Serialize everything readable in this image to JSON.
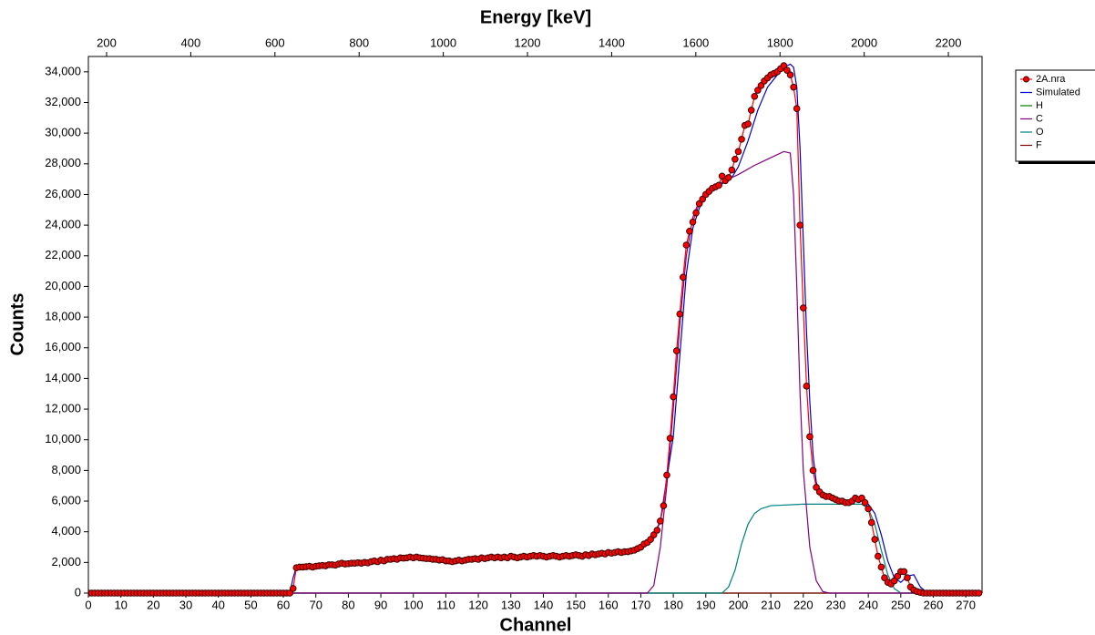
{
  "chart_data": {
    "type": "line",
    "title": "Energy [keV]",
    "x_label": "Channel",
    "y_label": "Counts",
    "xlim": [
      0,
      275
    ],
    "xticks": [
      0,
      10,
      20,
      30,
      40,
      50,
      60,
      70,
      80,
      90,
      100,
      110,
      120,
      130,
      140,
      150,
      160,
      170,
      180,
      190,
      200,
      210,
      220,
      230,
      240,
      250,
      260,
      270
    ],
    "x2lim": [
      156.7,
      2280
    ],
    "x2ticks": [
      200,
      400,
      600,
      800,
      1000,
      1200,
      1400,
      1600,
      1800,
      2000,
      2200
    ],
    "ylim": [
      0,
      35000
    ],
    "yticks": [
      0,
      {
        "value": 2000,
        "label": "2,000"
      },
      {
        "value": 4000,
        "label": "4,000"
      },
      {
        "value": 6000,
        "label": "6,000"
      },
      {
        "value": 8000,
        "label": "8,000"
      },
      {
        "value": 10000,
        "label": "10,000"
      },
      {
        "value": 12000,
        "label": "12,000"
      },
      {
        "value": 14000,
        "label": "14,000"
      },
      {
        "value": 16000,
        "label": "16,000"
      },
      {
        "value": 18000,
        "label": "18,000"
      },
      {
        "value": 20000,
        "label": "20,000"
      },
      {
        "value": 22000,
        "label": "22,000"
      },
      {
        "value": 24000,
        "label": "24,000"
      },
      {
        "value": 26000,
        "label": "26,000"
      },
      {
        "value": 28000,
        "label": "28,000"
      },
      {
        "value": 30000,
        "label": "30,000"
      },
      {
        "value": 32000,
        "label": "32,000"
      },
      {
        "value": 34000,
        "label": "34,000"
      }
    ],
    "legend": "upper right outside",
    "series": [
      {
        "name": "2A.nra",
        "color": "#ff0000",
        "markers": true,
        "x": [
          0,
          1,
          2,
          3,
          4,
          5,
          6,
          7,
          8,
          9,
          10,
          11,
          12,
          13,
          14,
          15,
          16,
          17,
          18,
          19,
          20,
          21,
          22,
          23,
          24,
          25,
          26,
          27,
          28,
          29,
          30,
          31,
          32,
          33,
          34,
          35,
          36,
          37,
          38,
          39,
          40,
          41,
          42,
          43,
          44,
          45,
          46,
          47,
          48,
          49,
          50,
          51,
          52,
          53,
          54,
          55,
          56,
          57,
          58,
          59,
          60,
          61,
          62,
          63,
          64,
          65,
          66,
          67,
          68,
          69,
          70,
          71,
          72,
          73,
          74,
          75,
          76,
          77,
          78,
          79,
          80,
          81,
          82,
          83,
          84,
          85,
          86,
          87,
          88,
          89,
          90,
          91,
          92,
          93,
          94,
          95,
          96,
          97,
          98,
          99,
          100,
          101,
          102,
          103,
          104,
          105,
          106,
          107,
          108,
          109,
          110,
          111,
          112,
          113,
          114,
          115,
          116,
          117,
          118,
          119,
          120,
          121,
          122,
          123,
          124,
          125,
          126,
          127,
          128,
          129,
          130,
          131,
          132,
          133,
          134,
          135,
          136,
          137,
          138,
          139,
          140,
          141,
          142,
          143,
          144,
          145,
          146,
          147,
          148,
          149,
          150,
          151,
          152,
          153,
          154,
          155,
          156,
          157,
          158,
          159,
          160,
          161,
          162,
          163,
          164,
          165,
          166,
          167,
          168,
          169,
          170,
          171,
          172,
          173,
          174,
          175,
          176,
          177,
          178,
          179,
          180,
          181,
          182,
          183,
          184,
          185,
          186,
          187,
          188,
          189,
          190,
          191,
          192,
          193,
          194,
          195,
          196,
          197,
          198,
          199,
          200,
          201,
          202,
          203,
          204,
          205,
          206,
          207,
          208,
          209,
          210,
          211,
          212,
          213,
          214,
          215,
          216,
          217,
          218,
          219,
          220,
          221,
          222,
          223,
          224,
          225,
          226,
          227,
          228,
          229,
          230,
          231,
          232,
          233,
          234,
          235,
          236,
          237,
          238,
          239,
          240,
          241,
          242,
          243,
          244,
          245,
          246,
          247,
          248,
          249,
          250,
          251,
          252,
          253,
          254,
          255,
          256,
          257,
          258,
          259,
          260,
          261,
          262,
          263,
          264,
          265,
          266,
          267,
          268,
          269,
          270,
          271,
          272,
          273,
          274
        ],
        "values": [
          0,
          0,
          0,
          0,
          0,
          0,
          0,
          0,
          0,
          0,
          0,
          0,
          0,
          0,
          0,
          0,
          0,
          0,
          0,
          0,
          0,
          0,
          0,
          0,
          0,
          0,
          0,
          0,
          0,
          0,
          0,
          0,
          0,
          0,
          0,
          0,
          0,
          0,
          0,
          0,
          0,
          0,
          0,
          0,
          0,
          0,
          0,
          0,
          0,
          0,
          0,
          0,
          0,
          0,
          0,
          0,
          0,
          0,
          0,
          0,
          0,
          0,
          0,
          300,
          1650,
          1700,
          1700,
          1720,
          1750,
          1700,
          1750,
          1780,
          1800,
          1780,
          1850,
          1850,
          1820,
          1900,
          1950,
          1900,
          1920,
          1950,
          1950,
          1980,
          1950,
          2000,
          1970,
          2050,
          2100,
          2050,
          2150,
          2100,
          2200,
          2200,
          2250,
          2200,
          2300,
          2280,
          2300,
          2350,
          2300,
          2350,
          2300,
          2280,
          2250,
          2250,
          2200,
          2200,
          2150,
          2180,
          2100,
          2100,
          2050,
          2100,
          2150,
          2100,
          2150,
          2200,
          2200,
          2250,
          2200,
          2300,
          2250,
          2300,
          2350,
          2300,
          2350,
          2300,
          2350,
          2300,
          2400,
          2350,
          2300,
          2350,
          2400,
          2350,
          2400,
          2450,
          2400,
          2450,
          2400,
          2350,
          2400,
          2450,
          2400,
          2350,
          2400,
          2450,
          2400,
          2450,
          2500,
          2450,
          2400,
          2500,
          2450,
          2550,
          2500,
          2550,
          2600,
          2550,
          2650,
          2600,
          2650,
          2700,
          2650,
          2700,
          2700,
          2750,
          2800,
          2900,
          3000,
          3200,
          3300,
          3500,
          3800,
          4100,
          4700,
          5700,
          7700,
          10100,
          12800,
          15800,
          18200,
          20600,
          22700,
          23600,
          24200,
          24800,
          25400,
          25700,
          26000,
          26200,
          26400,
          26500,
          26600,
          27200,
          26900,
          27100,
          27600,
          28300,
          28800,
          29600,
          30500,
          30600,
          31500,
          32400,
          32800,
          33100,
          33400,
          33600,
          33800,
          33900,
          34000,
          34200,
          34400,
          34100,
          33800,
          33000,
          31600,
          24000,
          18600,
          13500,
          10200,
          8000,
          6900,
          6600,
          6400,
          6300,
          6300,
          6200,
          6100,
          6000,
          6000,
          5900,
          5900,
          6000,
          6200,
          6100,
          6200,
          5900,
          5500,
          4600,
          3500,
          2400,
          1700,
          1000,
          700,
          600,
          800,
          1100,
          1400,
          1400,
          1000,
          400,
          200,
          100,
          50,
          0,
          0,
          0,
          0,
          0,
          0,
          0,
          0,
          0,
          0,
          0,
          0,
          0,
          0,
          0,
          0,
          0,
          0
        ]
      },
      {
        "name": "Simulated",
        "color": "#0000cc",
        "markers": false,
        "x": [
          0,
          62,
          63,
          64,
          100,
          110,
          150,
          168,
          170,
          172,
          174,
          176,
          178,
          180,
          182,
          184,
          186,
          188,
          190,
          192,
          195,
          198,
          200,
          203,
          206,
          209,
          212,
          214,
          216,
          217,
          218,
          219,
          220,
          221,
          222,
          223,
          224,
          226,
          230,
          235,
          238,
          240,
          242,
          244,
          246,
          248,
          250,
          252,
          254,
          256,
          258,
          275
        ],
        "values": [
          0,
          0,
          1000,
          1700,
          2300,
          2100,
          2450,
          2800,
          3000,
          3300,
          3800,
          4700,
          7500,
          10200,
          15500,
          20800,
          23800,
          25100,
          25900,
          26300,
          26700,
          27100,
          27800,
          29500,
          31500,
          33000,
          33800,
          34300,
          34500,
          34300,
          33000,
          29000,
          23000,
          17000,
          12500,
          9000,
          7200,
          6300,
          6100,
          6000,
          6000,
          5800,
          5200,
          3800,
          2100,
          1000,
          700,
          1100,
          1200,
          400,
          50,
          0
        ]
      },
      {
        "name": "H",
        "color": "#008000",
        "markers": false,
        "x": [
          0,
          275
        ],
        "values": [
          0,
          0
        ]
      },
      {
        "name": "C",
        "color": "#800080",
        "markers": false,
        "x": [
          0,
          172,
          174,
          176,
          178,
          180,
          182,
          184,
          186,
          188,
          190,
          195,
          200,
          205,
          210,
          214,
          216,
          217,
          218,
          219,
          220,
          222,
          224,
          226,
          228,
          275
        ],
        "values": [
          0,
          0,
          500,
          3000,
          7000,
          12000,
          17500,
          22000,
          24500,
          25600,
          26200,
          26800,
          27300,
          27900,
          28400,
          28800,
          28700,
          26000,
          20000,
          13000,
          8000,
          3000,
          800,
          100,
          0,
          0
        ]
      },
      {
        "name": "O",
        "color": "#008080",
        "markers": false,
        "x": [
          0,
          195,
          197,
          199,
          201,
          203,
          205,
          207,
          210,
          220,
          230,
          238,
          240,
          242,
          244,
          246,
          248,
          250,
          275
        ],
        "values": [
          0,
          0,
          400,
          1500,
          3200,
          4500,
          5200,
          5500,
          5700,
          5800,
          5800,
          5800,
          5500,
          4500,
          2800,
          1200,
          300,
          0,
          0
        ]
      },
      {
        "name": "F",
        "color": "#800000",
        "markers": false,
        "x": [
          0,
          275
        ],
        "values": [
          0,
          0
        ]
      }
    ]
  }
}
